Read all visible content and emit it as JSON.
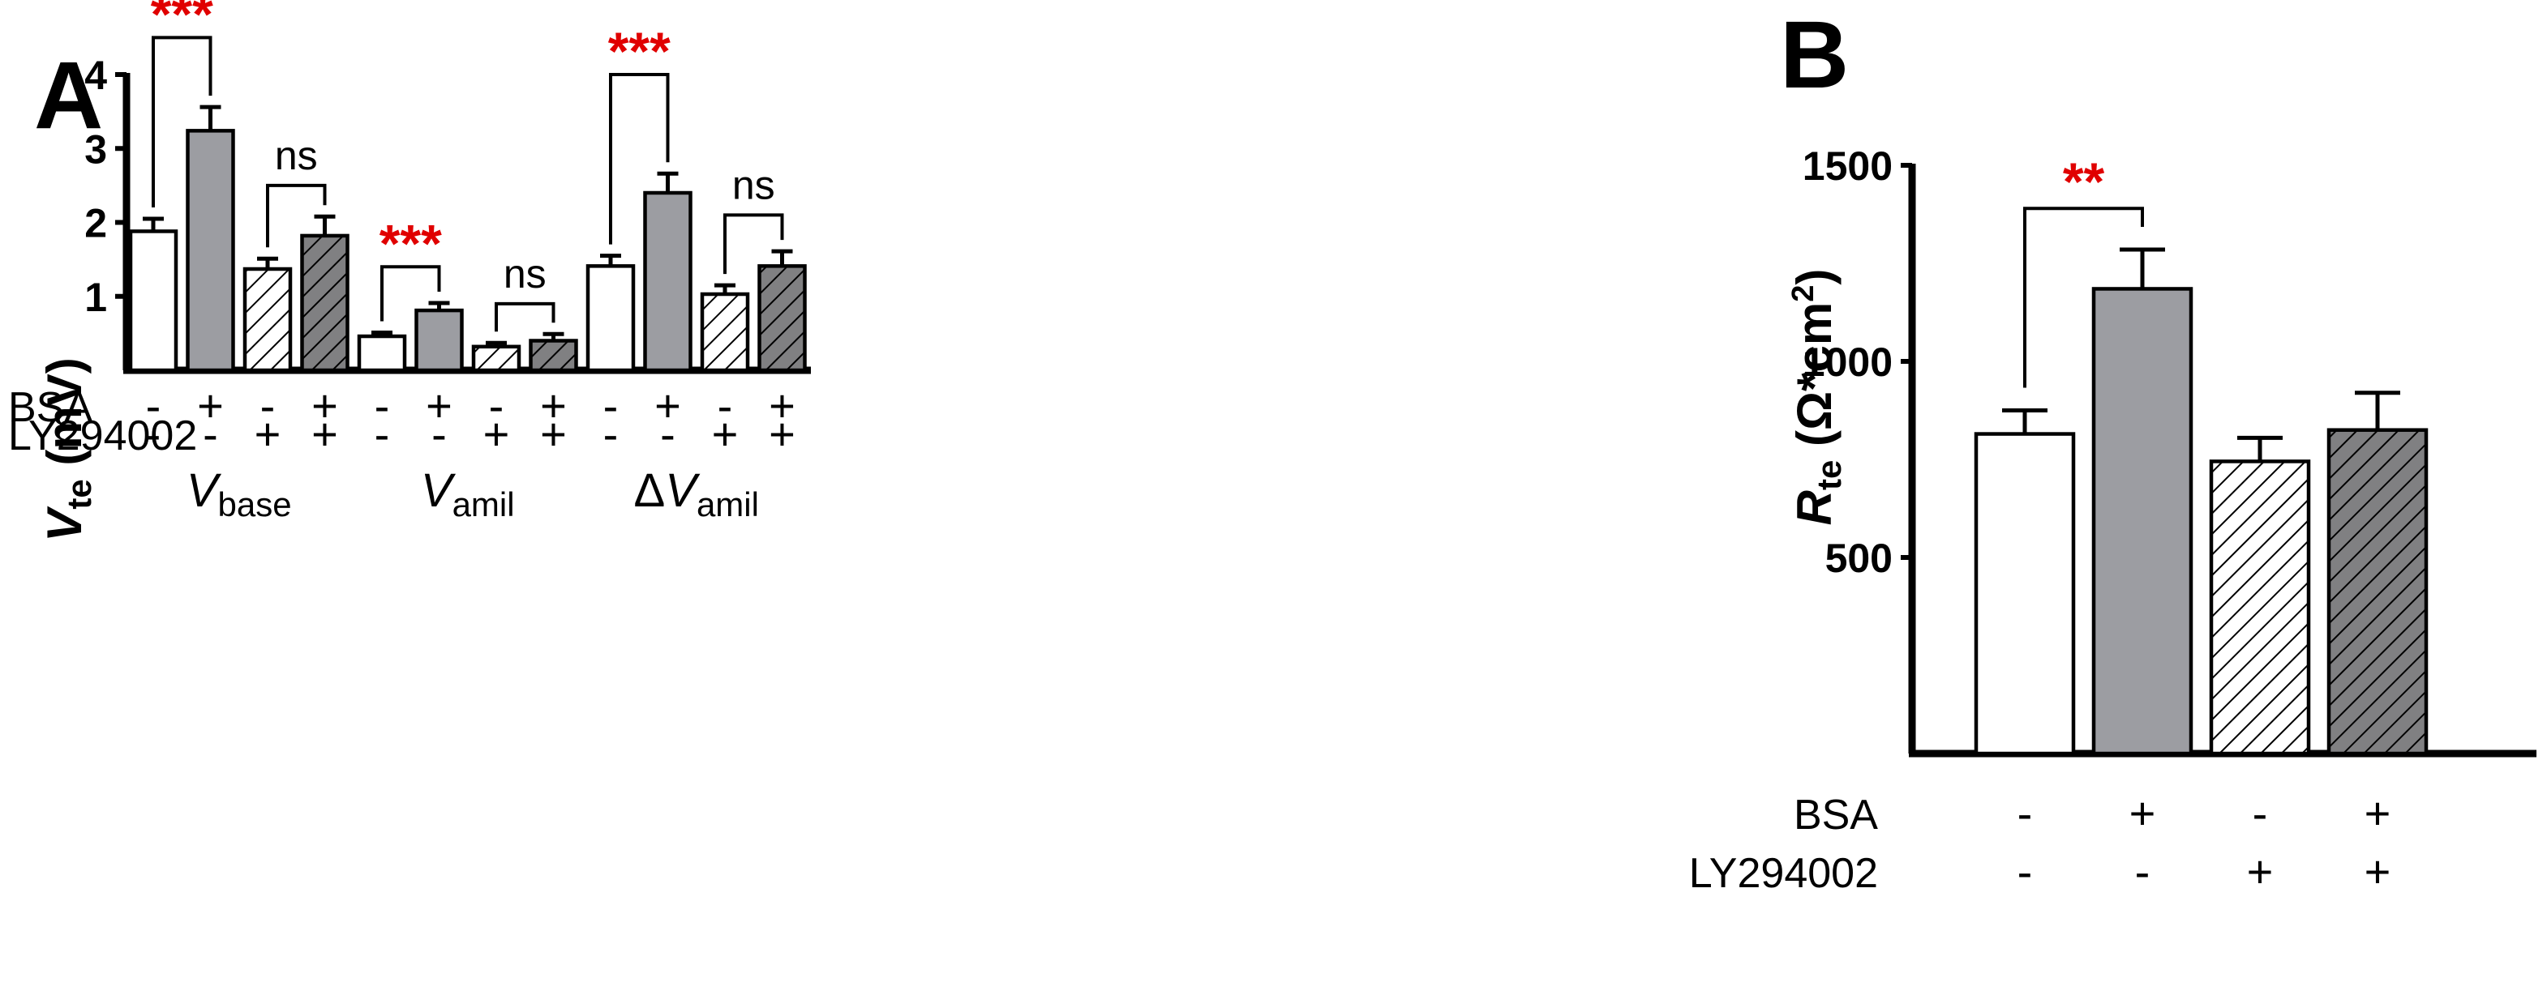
{
  "colors": {
    "gray": "#9c9da2",
    "hatch_light": "#ffffff",
    "hatch_dark": "#808082",
    "sig_red": "#e00000"
  },
  "chart_data": [
    {
      "type": "bar",
      "panel": "A",
      "ylabel_main": "V",
      "ylabel_sub": "te",
      "ylabel_unit": " (mV)",
      "ylim": [
        0,
        4
      ],
      "yticks": [
        {
          "value": 1,
          "label": "1"
        },
        {
          "value": 2,
          "label": "2"
        },
        {
          "value": 3,
          "label": "3"
        },
        {
          "value": 4,
          "label": "4"
        }
      ],
      "row_labels": [
        "BSA",
        "LY294002"
      ],
      "condition_signs": [
        [
          "-",
          "-"
        ],
        [
          "+",
          "-"
        ],
        [
          "-",
          "+"
        ],
        [
          "+",
          "+"
        ]
      ],
      "condition_styles": [
        "open",
        "gray",
        "hatch-light",
        "hatch-dark"
      ],
      "groups": [
        {
          "label_prefix": "",
          "label_main": "V",
          "label_sub": "base",
          "values": [
            1.88,
            3.24,
            1.37,
            1.82
          ],
          "errors": [
            0.17,
            0.32,
            0.14,
            0.26
          ]
        },
        {
          "label_prefix": "",
          "label_main": "V",
          "label_sub": "amil",
          "values": [
            0.46,
            0.81,
            0.32,
            0.4
          ],
          "errors": [
            0.05,
            0.1,
            0.05,
            0.09
          ]
        },
        {
          "label_prefix": "Δ",
          "label_main": "V",
          "label_sub": "amil",
          "values": [
            1.41,
            2.4,
            1.03,
            1.41
          ],
          "errors": [
            0.14,
            0.26,
            0.12,
            0.2
          ]
        }
      ],
      "significance": [
        {
          "group": 0,
          "from": 0,
          "to": 1,
          "label": "***",
          "y": 4.5,
          "red": true
        },
        {
          "group": 0,
          "from": 2,
          "to": 3,
          "label": "ns",
          "y": 2.5,
          "red": false
        },
        {
          "group": 1,
          "from": 0,
          "to": 1,
          "label": "***",
          "y": 1.4,
          "red": true
        },
        {
          "group": 1,
          "from": 2,
          "to": 3,
          "label": "ns",
          "y": 0.9,
          "red": false
        },
        {
          "group": 2,
          "from": 0,
          "to": 1,
          "label": "***",
          "y": 4.0,
          "red": true
        },
        {
          "group": 2,
          "from": 2,
          "to": 3,
          "label": "ns",
          "y": 2.1,
          "red": false
        }
      ]
    },
    {
      "type": "bar",
      "panel": "B",
      "ylabel_main": "R",
      "ylabel_sub": "te",
      "ylabel_unit_pre": " (Ω*cm",
      "ylabel_unit_sup": "2",
      "ylabel_unit_post": ")",
      "ylim": [
        0,
        1500
      ],
      "yticks": [
        {
          "value": 500,
          "label": "500"
        },
        {
          "value": 1000,
          "label": "1000"
        },
        {
          "value": 1500,
          "label": "1500"
        }
      ],
      "row_labels": [
        "BSA",
        "LY294002"
      ],
      "condition_signs": [
        [
          "-",
          "-"
        ],
        [
          "+",
          "-"
        ],
        [
          "-",
          "+"
        ],
        [
          "+",
          "+"
        ]
      ],
      "condition_styles": [
        "open",
        "gray",
        "hatch-light",
        "hatch-dark"
      ],
      "values": [
        815,
        1185,
        745,
        825
      ],
      "errors": [
        60,
        100,
        60,
        95
      ],
      "significance": [
        {
          "from": 0,
          "to": 1,
          "label": "**",
          "y": 1390,
          "red": true
        }
      ]
    }
  ]
}
